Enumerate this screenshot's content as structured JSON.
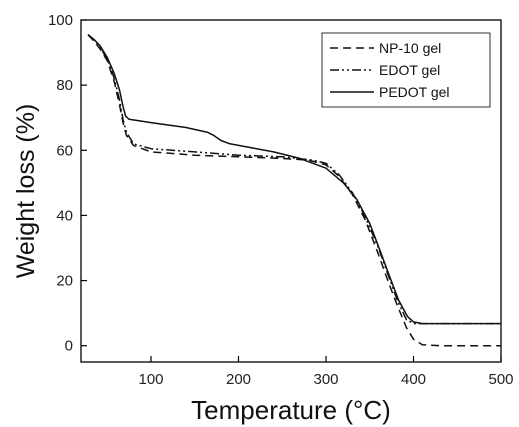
{
  "chart_data": {
    "type": "line",
    "title": "",
    "xlabel": "Temperature (°C)",
    "ylabel": "Weight loss (%)",
    "xlim": [
      20,
      500
    ],
    "ylim": [
      -5,
      100
    ],
    "xticks": [
      100,
      200,
      300,
      400,
      500
    ],
    "yticks": [
      0,
      20,
      40,
      60,
      80,
      100
    ],
    "grid": false,
    "legend_position": "top-right",
    "series": [
      {
        "name": "NP-10 gel",
        "dash": "dashed",
        "color": "#111111",
        "points": [
          [
            28,
            95.5
          ],
          [
            35,
            93.5
          ],
          [
            42,
            91
          ],
          [
            50,
            87.5
          ],
          [
            58,
            81
          ],
          [
            64,
            74
          ],
          [
            68,
            68.5
          ],
          [
            72,
            64.5
          ],
          [
            80,
            61.5
          ],
          [
            100,
            59.5
          ],
          [
            150,
            58.5
          ],
          [
            200,
            58
          ],
          [
            250,
            57.5
          ],
          [
            280,
            57
          ],
          [
            300,
            55.5
          ],
          [
            315,
            52
          ],
          [
            330,
            46.5
          ],
          [
            345,
            38.5
          ],
          [
            360,
            28
          ],
          [
            372,
            19
          ],
          [
            382,
            12
          ],
          [
            392,
            5.5
          ],
          [
            400,
            2
          ],
          [
            410,
            0.3
          ],
          [
            430,
            0
          ],
          [
            500,
            0
          ]
        ]
      },
      {
        "name": "EDOT gel",
        "dash": "dash-dot-dot",
        "color": "#111111",
        "points": [
          [
            28,
            95.5
          ],
          [
            35,
            93.8
          ],
          [
            42,
            91.5
          ],
          [
            50,
            88
          ],
          [
            58,
            82
          ],
          [
            64,
            75.5
          ],
          [
            68,
            69.5
          ],
          [
            72,
            65.5
          ],
          [
            80,
            62
          ],
          [
            100,
            60.5
          ],
          [
            150,
            59.5
          ],
          [
            200,
            58.5
          ],
          [
            250,
            58
          ],
          [
            285,
            57
          ],
          [
            300,
            56
          ],
          [
            315,
            52.5
          ],
          [
            330,
            47
          ],
          [
            345,
            39.5
          ],
          [
            360,
            30
          ],
          [
            372,
            21
          ],
          [
            382,
            13.5
          ],
          [
            392,
            8
          ],
          [
            400,
            6.8
          ],
          [
            420,
            6.8
          ],
          [
            500,
            6.8
          ]
        ]
      },
      {
        "name": "PEDOT gel",
        "dash": "solid",
        "color": "#111111",
        "points": [
          [
            28,
            95.5
          ],
          [
            35,
            94
          ],
          [
            42,
            92
          ],
          [
            50,
            88.5
          ],
          [
            58,
            83.5
          ],
          [
            64,
            78.5
          ],
          [
            68,
            73.5
          ],
          [
            71,
            70.5
          ],
          [
            75,
            69.5
          ],
          [
            100,
            68.5
          ],
          [
            140,
            67
          ],
          [
            165,
            65.5
          ],
          [
            172,
            64.5
          ],
          [
            180,
            63
          ],
          [
            190,
            62
          ],
          [
            210,
            61
          ],
          [
            240,
            59.5
          ],
          [
            270,
            57.5
          ],
          [
            300,
            54.5
          ],
          [
            320,
            50
          ],
          [
            335,
            45
          ],
          [
            350,
            37.5
          ],
          [
            362,
            29
          ],
          [
            373,
            21
          ],
          [
            383,
            14
          ],
          [
            393,
            9
          ],
          [
            400,
            7.3
          ],
          [
            410,
            6.8
          ],
          [
            500,
            6.8
          ]
        ]
      }
    ]
  }
}
